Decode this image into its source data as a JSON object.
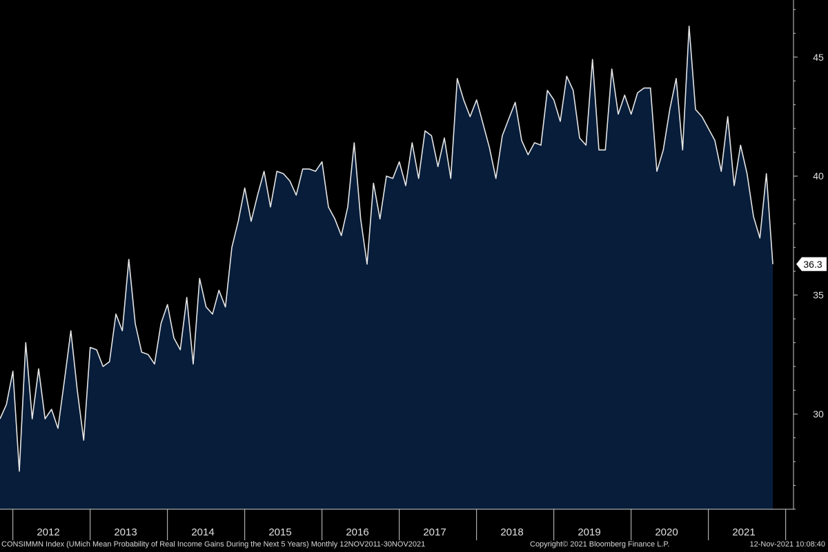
{
  "chart_data": {
    "type": "area",
    "title": "",
    "xlabel": "",
    "ylabel": "",
    "x_tick_labels": [
      "2012",
      "2013",
      "2014",
      "2015",
      "2016",
      "2017",
      "2018",
      "2019",
      "2020",
      "2021"
    ],
    "y_ticks": [
      30,
      35,
      40,
      45
    ],
    "ylim": [
      26.0,
      47.4
    ],
    "x_start": "2011-11",
    "x_end": "2021-11",
    "grid": false,
    "legend": "none",
    "last_value_label": "36.3",
    "series": [
      {
        "values": [
          29.8,
          30.4,
          31.8,
          27.6,
          33.0,
          29.8,
          31.9,
          29.8,
          30.2,
          29.4,
          31.4,
          33.5,
          31.0,
          28.9,
          32.8,
          32.7,
          32.0,
          32.2,
          34.2,
          33.5,
          36.5,
          33.8,
          32.6,
          32.5,
          32.1,
          33.8,
          34.6,
          33.2,
          32.7,
          34.9,
          32.1,
          35.7,
          34.5,
          34.2,
          35.2,
          34.5,
          37.0,
          38.1,
          39.5,
          38.1,
          39.2,
          40.2,
          38.7,
          40.2,
          40.1,
          39.8,
          39.2,
          40.3,
          40.3,
          40.2,
          40.6,
          38.7,
          38.2,
          37.5,
          38.7,
          41.4,
          38.2,
          36.3,
          39.7,
          38.2,
          40.0,
          39.9,
          40.6,
          39.6,
          41.4,
          39.9,
          41.9,
          41.7,
          40.4,
          41.6,
          39.9,
          44.1,
          43.2,
          42.5,
          43.2,
          42.2,
          41.2,
          39.9,
          41.7,
          42.4,
          43.1,
          41.5,
          40.9,
          41.4,
          41.3,
          43.6,
          43.2,
          42.3,
          44.2,
          43.6,
          41.6,
          41.3,
          44.9,
          41.1,
          41.1,
          44.5,
          42.6,
          43.4,
          42.6,
          43.5,
          43.7,
          43.7,
          40.2,
          41.1,
          42.8,
          44.1,
          41.1,
          46.3,
          42.8,
          42.5,
          42.0,
          41.5,
          40.2,
          42.5,
          39.6,
          41.3,
          40.1,
          38.3,
          37.4,
          40.1,
          36.3
        ]
      }
    ]
  },
  "footer": {
    "left": "CONSIMMN Index (UMich Mean Probability of Real Income Gains During the Next 5 Years) Monthly 12NOV2011-30NOV2021",
    "center": "Copyright© 2021 Bloomberg Finance L.P.",
    "right": "12-Nov-2021 10:08:40"
  },
  "colors": {
    "background": "#000000",
    "area_fill": "#071d3a",
    "line": "#e6e6e6",
    "axis": "#cfcfcf",
    "text": "#e0e0e0"
  }
}
